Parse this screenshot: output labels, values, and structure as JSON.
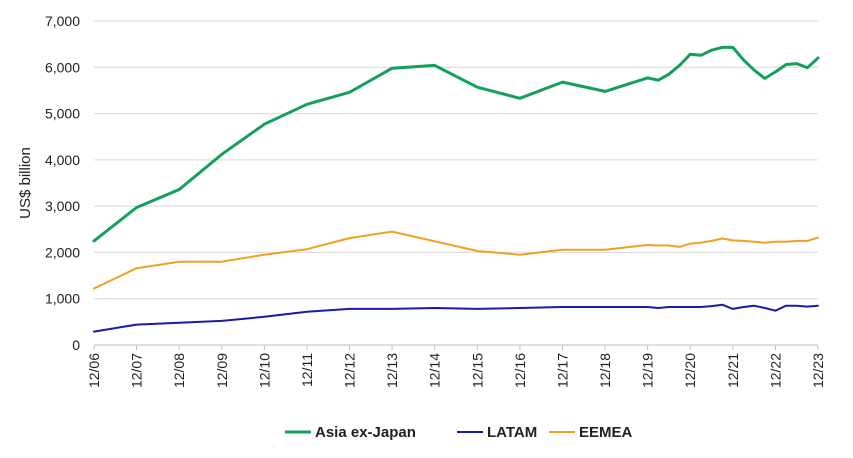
{
  "chart_data": {
    "type": "line",
    "ylabel": "US$ billion",
    "xlabel": "",
    "ylim": [
      0,
      7000
    ],
    "yticks": [
      0,
      1000,
      2000,
      3000,
      4000,
      5000,
      6000,
      7000
    ],
    "ytick_labels": [
      "0",
      "1,000",
      "2,000",
      "3,000",
      "4,000",
      "5,000",
      "6,000",
      "7,000"
    ],
    "xlim": [
      2006,
      2023
    ],
    "xticks": [
      2006,
      2007,
      2008,
      2009,
      2010,
      2011,
      2012,
      2013,
      2014,
      2015,
      2016,
      2017,
      2018,
      2019,
      2020,
      2021,
      2022,
      2023
    ],
    "xtick_labels": [
      "12/06",
      "12/07",
      "12/08",
      "12/09",
      "12/10",
      "12/11",
      "12/12",
      "12/13",
      "12/14",
      "12/15",
      "12/16",
      "12/17",
      "12/18",
      "12/19",
      "12/20",
      "12/21",
      "12/22",
      "12/23"
    ],
    "grid": "horizontal",
    "legend_position": "bottom",
    "series": [
      {
        "name": "Asia ex-Japan",
        "color": "#12A05A",
        "x": [
          2006,
          2007,
          2008,
          2009,
          2010,
          2011,
          2012,
          2013,
          2014,
          2015,
          2016,
          2017,
          2018,
          2019,
          2019.25,
          2019.5,
          2019.75,
          2020,
          2020.25,
          2020.5,
          2020.75,
          2021,
          2021.25,
          2021.5,
          2021.75,
          2022,
          2022.25,
          2022.5,
          2022.75,
          2023
        ],
        "values": [
          2250,
          2970,
          3360,
          4120,
          4770,
          5200,
          5460,
          5980,
          6040,
          5570,
          5330,
          5680,
          5480,
          5770,
          5720,
          5850,
          6040,
          6280,
          6260,
          6370,
          6430,
          6430,
          6160,
          5940,
          5760,
          5900,
          6060,
          6080,
          5990,
          6200
        ]
      },
      {
        "name": "LATAM",
        "color": "#1A1AA6",
        "x": [
          2006,
          2007,
          2008,
          2009,
          2010,
          2011,
          2012,
          2013,
          2014,
          2015,
          2016,
          2017,
          2018,
          2019,
          2019.25,
          2019.5,
          2019.75,
          2020,
          2020.25,
          2020.5,
          2020.75,
          2021,
          2021.25,
          2021.5,
          2021.75,
          2022,
          2022.25,
          2022.5,
          2022.75,
          2023
        ],
        "values": [
          290,
          440,
          480,
          520,
          610,
          720,
          780,
          780,
          800,
          780,
          800,
          820,
          820,
          820,
          800,
          820,
          820,
          820,
          820,
          840,
          870,
          780,
          820,
          850,
          800,
          740,
          850,
          850,
          830,
          850
        ]
      },
      {
        "name": "EEMEA",
        "color": "#F0A020",
        "x": [
          2006,
          2007,
          2008,
          2009,
          2010,
          2011,
          2012,
          2013,
          2014,
          2015,
          2016,
          2017,
          2018,
          2019,
          2019.25,
          2019.5,
          2019.75,
          2020,
          2020.25,
          2020.5,
          2020.75,
          2021,
          2021.25,
          2021.5,
          2021.75,
          2022,
          2022.25,
          2022.5,
          2022.75,
          2023
        ],
        "values": [
          1220,
          1660,
          1800,
          1800,
          1950,
          2070,
          2310,
          2450,
          2240,
          2030,
          1950,
          2060,
          2060,
          2160,
          2150,
          2150,
          2120,
          2190,
          2210,
          2250,
          2300,
          2260,
          2250,
          2230,
          2210,
          2230,
          2230,
          2250,
          2250,
          2320
        ]
      }
    ]
  }
}
